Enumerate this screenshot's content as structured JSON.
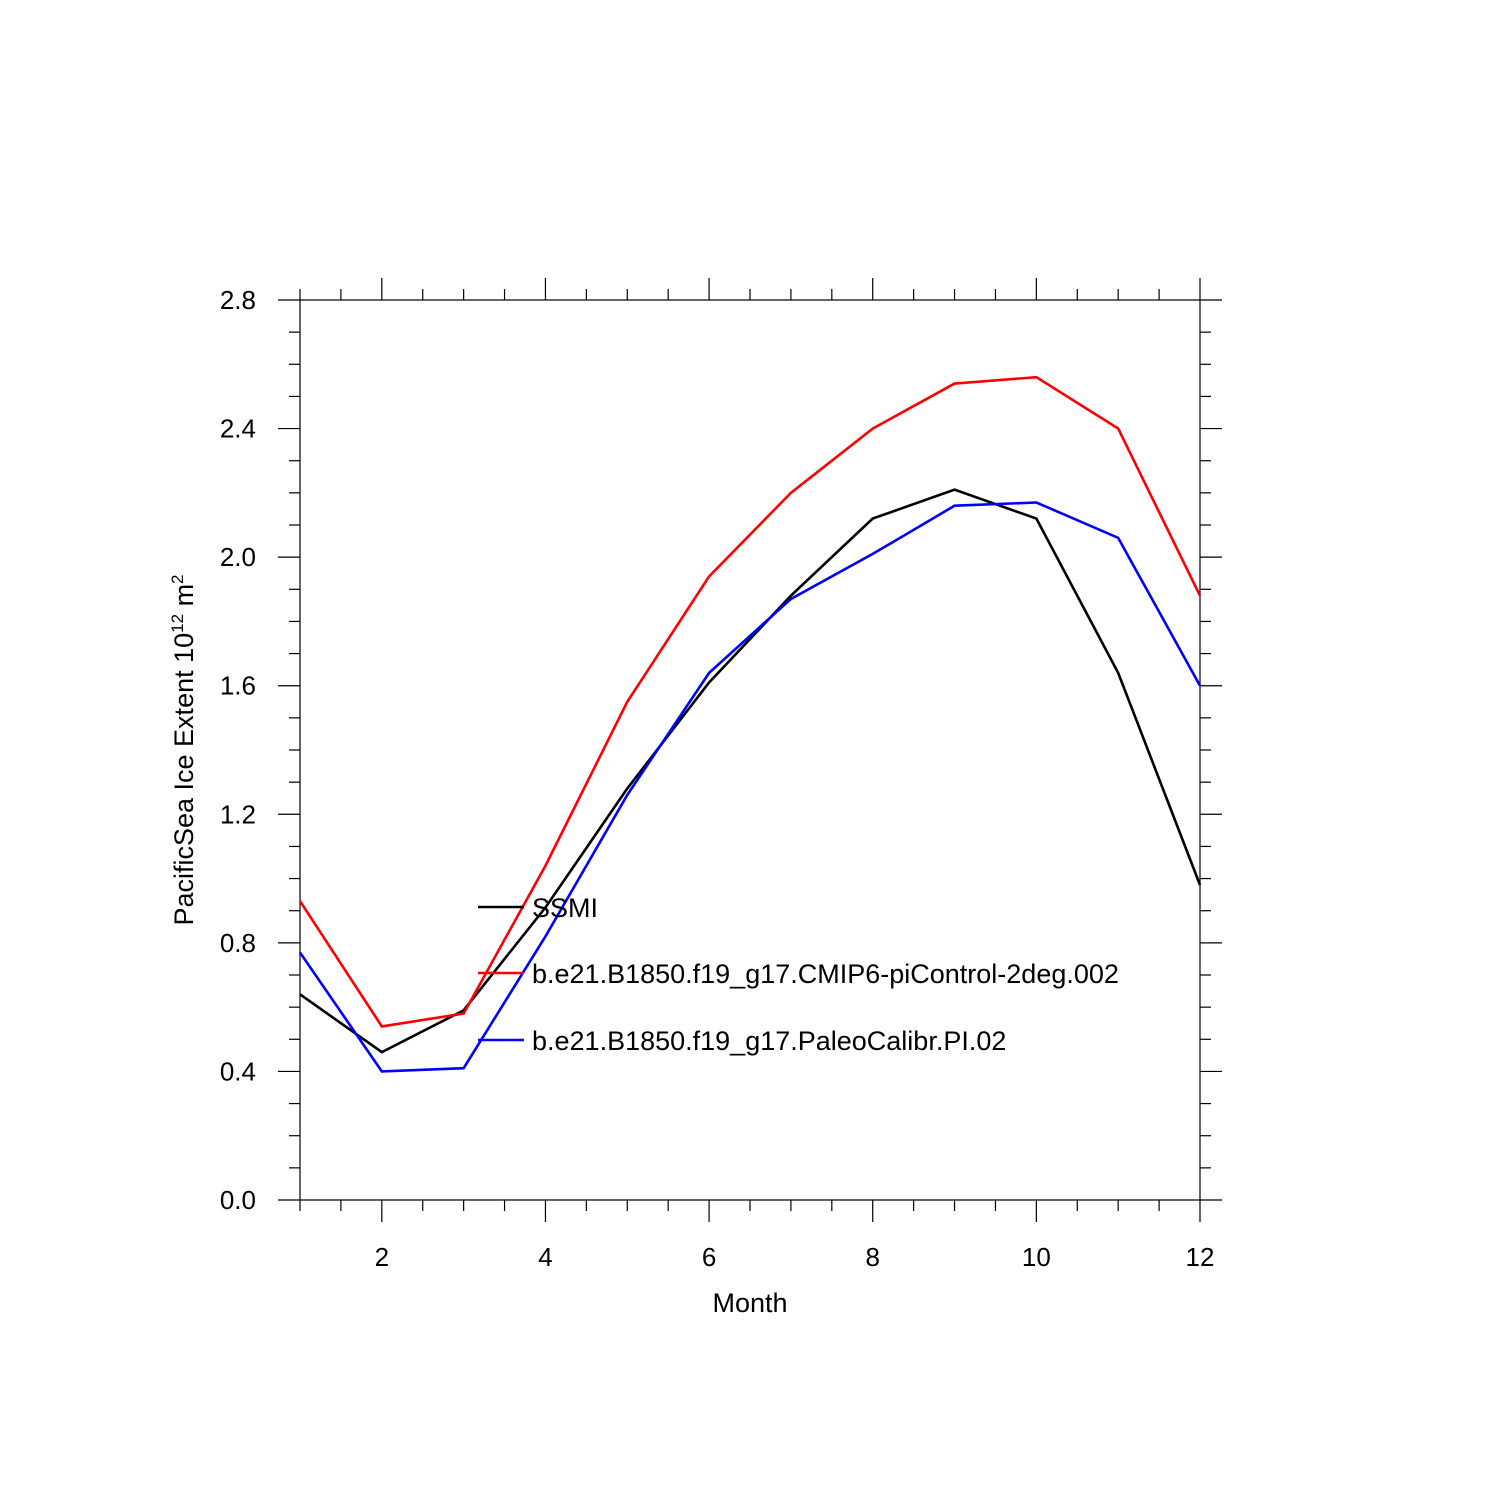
{
  "chart_data": {
    "type": "line",
    "xlabel": "Month",
    "ylabel_text": "PacificSea Ice Extent 10",
    "ylabel_sup1": "12",
    "ylabel_unit": " m",
    "ylabel_sup2": "2",
    "xlim": [
      1,
      12
    ],
    "ylim": [
      0.0,
      2.8
    ],
    "xticks": [
      2,
      4,
      6,
      8,
      10,
      12
    ],
    "xtick_labels": [
      "2",
      "4",
      "6",
      "8",
      "10",
      "12"
    ],
    "yticks": [
      0.0,
      0.4,
      0.8,
      1.2,
      1.6,
      2.0,
      2.4,
      2.8
    ],
    "ytick_labels": [
      "0.0",
      "0.4",
      "0.8",
      "1.2",
      "1.6",
      "2.0",
      "2.4",
      "2.8"
    ],
    "x": [
      1,
      2,
      3,
      4,
      5,
      6,
      7,
      8,
      9,
      10,
      11,
      12
    ],
    "legend_position": "center-left",
    "series": [
      {
        "name": "SSMI",
        "color": "#000000",
        "values": [
          0.64,
          0.46,
          0.59,
          0.91,
          1.28,
          1.61,
          1.88,
          2.12,
          2.21,
          2.12,
          1.64,
          0.98
        ]
      },
      {
        "name": "b.e21.B1850.f19_g17.CMIP6-piControl-2deg.002",
        "color": "#ff0000",
        "values": [
          0.93,
          0.54,
          0.58,
          1.04,
          1.55,
          1.94,
          2.2,
          2.4,
          2.54,
          2.56,
          2.4,
          1.88
        ]
      },
      {
        "name": "b.e21.B1850.f19_g17.PaleoCalibr.PI.02",
        "color": "#0000ff",
        "values": [
          0.77,
          0.4,
          0.41,
          0.82,
          1.26,
          1.64,
          1.87,
          2.01,
          2.16,
          2.17,
          2.06,
          1.6
        ]
      }
    ]
  }
}
